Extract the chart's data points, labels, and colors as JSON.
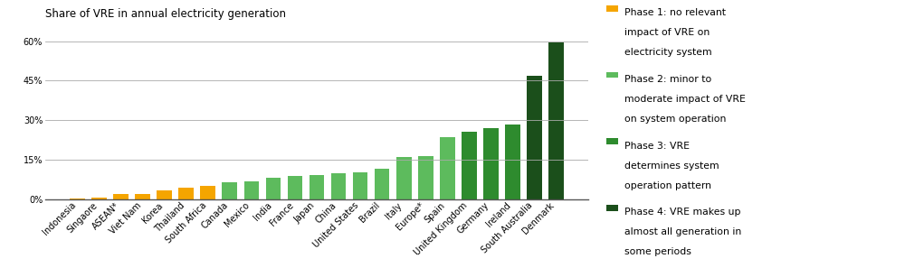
{
  "categories": [
    "Indonesia",
    "Singaore",
    "ASEAN*",
    "Viet Nam",
    "Korea",
    "Thailand",
    "South Africa",
    "Canada",
    "Mexico",
    "India",
    "France",
    "Japan",
    "China",
    "United States",
    "Brazil",
    "Italy",
    "Europe*",
    "Spain",
    "United Kingdom",
    "Germany",
    "Ireland",
    "South Australia",
    "Denmark"
  ],
  "values": [
    0.3,
    0.8,
    2.0,
    2.2,
    3.5,
    4.5,
    5.2,
    6.5,
    7.0,
    8.2,
    8.8,
    9.3,
    9.8,
    10.3,
    11.5,
    16.0,
    16.5,
    23.5,
    25.5,
    27.0,
    28.5,
    47.0,
    59.5
  ],
  "colors": [
    "#F5A500",
    "#F5A500",
    "#F5A500",
    "#F5A500",
    "#F5A500",
    "#F5A500",
    "#F5A500",
    "#5DBB5D",
    "#5DBB5D",
    "#5DBB5D",
    "#5DBB5D",
    "#5DBB5D",
    "#5DBB5D",
    "#5DBB5D",
    "#5DBB5D",
    "#5DBB5D",
    "#5DBB5D",
    "#5DBB5D",
    "#2E8B2E",
    "#2E8B2E",
    "#2E8B2E",
    "#1B4F1B",
    "#1B4F1B"
  ],
  "phase1_color": "#F5A500",
  "phase2_color": "#5DBB5D",
  "phase3_color": "#2E8B2E",
  "phase4_color": "#1B4F1B",
  "title": "Share of VRE in annual electricity generation",
  "yticks": [
    0,
    15,
    30,
    45,
    60
  ],
  "ytick_labels": [
    "0%",
    "15%",
    "30%",
    "45%",
    "60%"
  ],
  "ylim": [
    0,
    63
  ],
  "legend_labels": [
    "Phase 1: no relevant\nimpact of VRE on\nelectricity system",
    "Phase 2: minor to\nmoderate impact of VRE\non system operation",
    "Phase 3: VRE\ndetermines system\noperation pattern",
    "Phase 4: VRE makes up\nalmost all generation in\nsome periods"
  ],
  "background_color": "#FFFFFF",
  "grid_color": "#AAAAAA",
  "title_fontsize": 8.5,
  "tick_fontsize": 7.0,
  "legend_fontsize": 7.8
}
